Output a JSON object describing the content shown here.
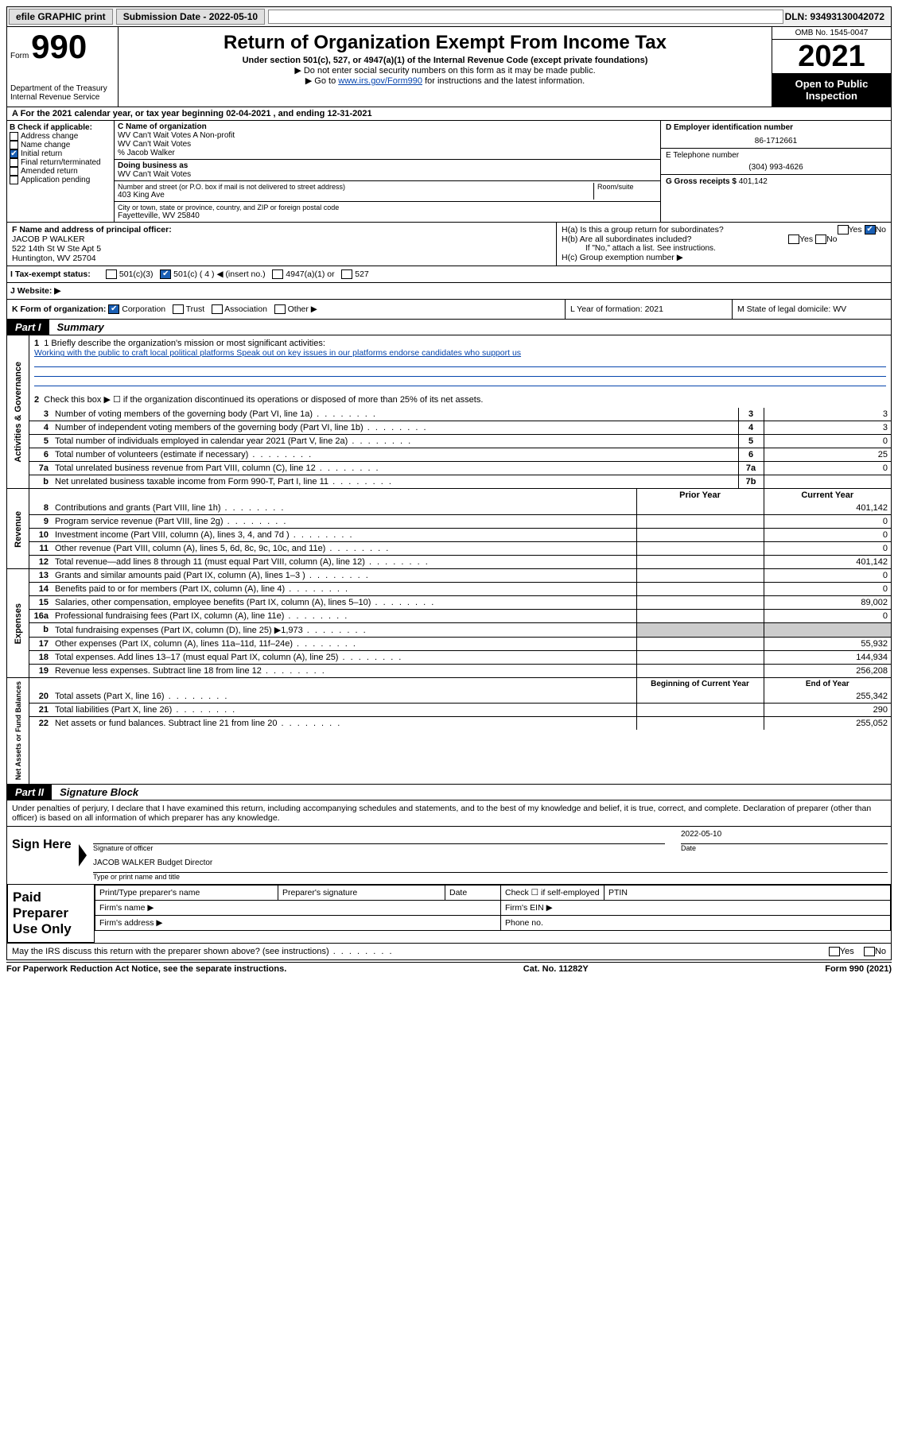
{
  "topbar": {
    "efile": "efile GRAPHIC print",
    "submission_label": "Submission Date - 2022-05-10",
    "dln": "DLN: 93493130042072"
  },
  "header": {
    "form_word": "Form",
    "form_number": "990",
    "dept1": "Department of the Treasury",
    "dept2": "Internal Revenue Service",
    "title": "Return of Organization Exempt From Income Tax",
    "subtitle": "Under section 501(c), 527, or 4947(a)(1) of the Internal Revenue Code (except private foundations)",
    "note1": "▶ Do not enter social security numbers on this form as it may be made public.",
    "note2_pre": "▶ Go to ",
    "note2_link": "www.irs.gov/Form990",
    "note2_post": " for instructions and the latest information.",
    "omb": "OMB No. 1545-0047",
    "year": "2021",
    "open_public": "Open to Public Inspection"
  },
  "row_a": "A For the 2021 calendar year, or tax year beginning 02-04-2021  , and ending 12-31-2021",
  "col_b": {
    "label": "B Check if applicable:",
    "items": [
      {
        "text": "Address change",
        "checked": false
      },
      {
        "text": "Name change",
        "checked": false
      },
      {
        "text": "Initial return",
        "checked": true
      },
      {
        "text": "Final return/terminated",
        "checked": false
      },
      {
        "text": "Amended return",
        "checked": false
      },
      {
        "text": "Application pending",
        "checked": false
      }
    ]
  },
  "col_c": {
    "name_label": "C Name of organization",
    "name1": "WV Can't Wait Votes A Non-profit",
    "name2": "WV Can't Wait Votes",
    "name3": "% Jacob Walker",
    "dba_label": "Doing business as",
    "dba": "WV Can't Wait Votes",
    "addr_label": "Number and street (or P.O. box if mail is not delivered to street address)",
    "room_label": "Room/suite",
    "addr": "403 King Ave",
    "city_label": "City or town, state or province, country, and ZIP or foreign postal code",
    "city": "Fayetteville, WV  25840"
  },
  "col_d": {
    "label": "D Employer identification number",
    "val": "86-1712661",
    "e_label": "E Telephone number",
    "e_val": "(304) 993-4626",
    "g_label": "G Gross receipts $",
    "g_val": "401,142"
  },
  "block_f": {
    "label": "F Name and address of principal officer:",
    "name": "JACOB P WALKER",
    "addr1": "522 14th St W Ste Apt 5",
    "addr2": "Huntington, WV  25704"
  },
  "block_h": {
    "ha": "H(a)  Is this a group return for subordinates?",
    "ha_yes": "Yes",
    "ha_no": "No",
    "ha_checked": "No",
    "hb": "H(b)  Are all subordinates included?",
    "hb_note": "If \"No,\" attach a list. See instructions.",
    "hc": "H(c)  Group exemption number ▶"
  },
  "row_i": {
    "label": "I   Tax-exempt status:",
    "opts": [
      "501(c)(3)",
      "501(c) ( 4 ) ◀ (insert no.)",
      "4947(a)(1) or",
      "527"
    ],
    "checked_idx": 1
  },
  "row_j": {
    "label": "J   Website: ▶"
  },
  "row_k": {
    "label": "K Form of organization:",
    "opts": [
      "Corporation",
      "Trust",
      "Association",
      "Other ▶"
    ],
    "checked_idx": 0,
    "l": "L Year of formation: 2021",
    "m": "M State of legal domicile: WV"
  },
  "part1": {
    "tag": "Part I",
    "title": "Summary"
  },
  "activities": {
    "side": "Activities & Governance",
    "line1_label": "1   Briefly describe the organization's mission or most significant activities:",
    "line1_text": "Working with the public to craft local political platforms Speak out on key issues in our platforms endorse candidates who support us",
    "line2": "Check this box ▶ ☐  if the organization discontinued its operations or disposed of more than 25% of its net assets.",
    "rows": [
      {
        "n": "3",
        "desc": "Number of voting members of the governing body (Part VI, line 1a)",
        "box": "3",
        "val": "3"
      },
      {
        "n": "4",
        "desc": "Number of independent voting members of the governing body (Part VI, line 1b)",
        "box": "4",
        "val": "3"
      },
      {
        "n": "5",
        "desc": "Total number of individuals employed in calendar year 2021 (Part V, line 2a)",
        "box": "5",
        "val": "0"
      },
      {
        "n": "6",
        "desc": "Total number of volunteers (estimate if necessary)",
        "box": "6",
        "val": "25"
      },
      {
        "n": "7a",
        "desc": "Total unrelated business revenue from Part VIII, column (C), line 12",
        "box": "7a",
        "val": "0"
      },
      {
        "n": "b",
        "desc": "Net unrelated business taxable income from Form 990-T, Part I, line 11",
        "box": "7b",
        "val": ""
      }
    ]
  },
  "revenue": {
    "side": "Revenue",
    "hdr_prior": "Prior Year",
    "hdr_curr": "Current Year",
    "rows": [
      {
        "n": "8",
        "desc": "Contributions and grants (Part VIII, line 1h)",
        "prior": "",
        "curr": "401,142"
      },
      {
        "n": "9",
        "desc": "Program service revenue (Part VIII, line 2g)",
        "prior": "",
        "curr": "0"
      },
      {
        "n": "10",
        "desc": "Investment income (Part VIII, column (A), lines 3, 4, and 7d )",
        "prior": "",
        "curr": "0"
      },
      {
        "n": "11",
        "desc": "Other revenue (Part VIII, column (A), lines 5, 6d, 8c, 9c, 10c, and 11e)",
        "prior": "",
        "curr": "0"
      },
      {
        "n": "12",
        "desc": "Total revenue—add lines 8 through 11 (must equal Part VIII, column (A), line 12)",
        "prior": "",
        "curr": "401,142"
      }
    ]
  },
  "expenses": {
    "side": "Expenses",
    "rows": [
      {
        "n": "13",
        "desc": "Grants and similar amounts paid (Part IX, column (A), lines 1–3 )",
        "prior": "",
        "curr": "0"
      },
      {
        "n": "14",
        "desc": "Benefits paid to or for members (Part IX, column (A), line 4)",
        "prior": "",
        "curr": "0"
      },
      {
        "n": "15",
        "desc": "Salaries, other compensation, employee benefits (Part IX, column (A), lines 5–10)",
        "prior": "",
        "curr": "89,002"
      },
      {
        "n": "16a",
        "desc": "Professional fundraising fees (Part IX, column (A), line 11e)",
        "prior": "",
        "curr": "0"
      },
      {
        "n": "b",
        "desc": "Total fundraising expenses (Part IX, column (D), line 25) ▶1,973",
        "prior": "shade",
        "curr": "shade"
      },
      {
        "n": "17",
        "desc": "Other expenses (Part IX, column (A), lines 11a–11d, 11f–24e)",
        "prior": "",
        "curr": "55,932"
      },
      {
        "n": "18",
        "desc": "Total expenses. Add lines 13–17 (must equal Part IX, column (A), line 25)",
        "prior": "",
        "curr": "144,934"
      },
      {
        "n": "19",
        "desc": "Revenue less expenses. Subtract line 18 from line 12",
        "prior": "",
        "curr": "256,208"
      }
    ]
  },
  "netassets": {
    "side": "Net Assets or Fund Balances",
    "hdr_beg": "Beginning of Current Year",
    "hdr_end": "End of Year",
    "rows": [
      {
        "n": "20",
        "desc": "Total assets (Part X, line 16)",
        "beg": "",
        "end": "255,342"
      },
      {
        "n": "21",
        "desc": "Total liabilities (Part X, line 26)",
        "beg": "",
        "end": "290"
      },
      {
        "n": "22",
        "desc": "Net assets or fund balances. Subtract line 21 from line 20",
        "beg": "",
        "end": "255,052"
      }
    ]
  },
  "part2": {
    "tag": "Part II",
    "title": "Signature Block"
  },
  "sig": {
    "decl": "Under penalties of perjury, I declare that I have examined this return, including accompanying schedules and statements, and to the best of my knowledge and belief, it is true, correct, and complete. Declaration of preparer (other than officer) is based on all information of which preparer has any knowledge.",
    "sign_here": "Sign Here",
    "sig_officer": "Signature of officer",
    "date_val": "2022-05-10",
    "date_lbl": "Date",
    "officer_name": "JACOB WALKER Budget Director",
    "type_name": "Type or print name and title",
    "paid": "Paid Preparer Use Only",
    "prep_hdr": [
      "Print/Type preparer's name",
      "Preparer's signature",
      "Date",
      "",
      "PTIN"
    ],
    "check_self": "Check ☐ if self-employed",
    "firm_name": "Firm's name  ▶",
    "firm_ein": "Firm's EIN ▶",
    "firm_addr": "Firm's address ▶",
    "phone": "Phone no."
  },
  "bottom": {
    "discuss": "May the IRS discuss this return with the preparer shown above? (see instructions)",
    "yes": "Yes",
    "no": "No",
    "paperwork": "For Paperwork Reduction Act Notice, see the separate instructions.",
    "cat": "Cat. No. 11282Y",
    "formref": "Form 990 (2021)"
  }
}
